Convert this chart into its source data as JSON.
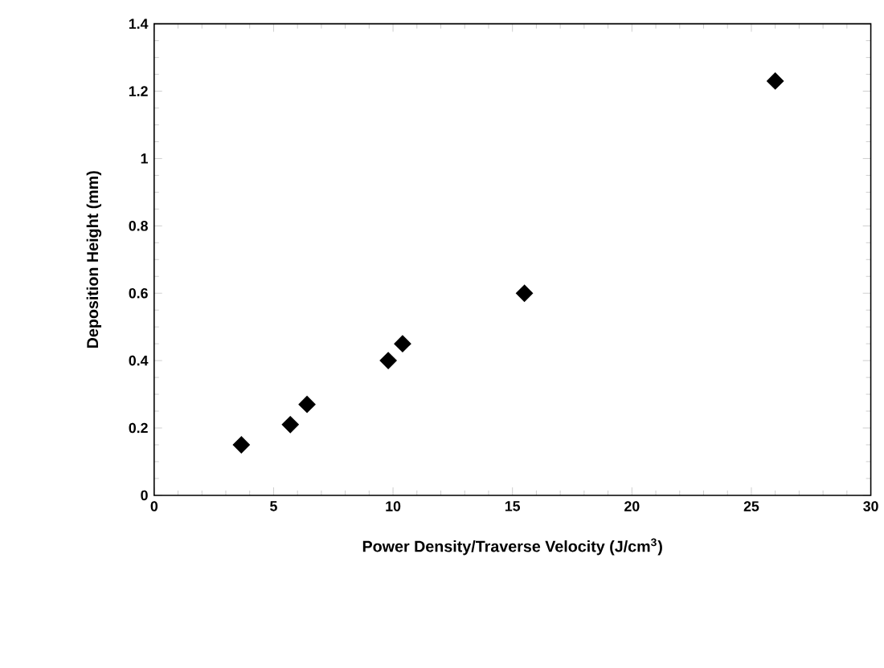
{
  "chart_data": {
    "type": "scatter",
    "xlabel": "Power Density/Traverse Velocity (J/cm$^{3}$)",
    "ylabel": "Deposition Height (mm)",
    "x": [
      3.65,
      5.7,
      6.4,
      9.8,
      10.4,
      15.5,
      26.0
    ],
    "values": [
      0.15,
      0.21,
      0.27,
      0.4,
      0.45,
      0.6,
      1.23
    ],
    "color": "#000000",
    "marker": "diamond",
    "xlim": [
      0,
      30
    ],
    "ylim": [
      0,
      1.4
    ],
    "xticks": [
      0,
      5,
      10,
      15,
      20,
      25,
      30
    ],
    "yticks": [
      0,
      0.2,
      0.4,
      0.6,
      0.8,
      1,
      1.2,
      1.4
    ]
  }
}
